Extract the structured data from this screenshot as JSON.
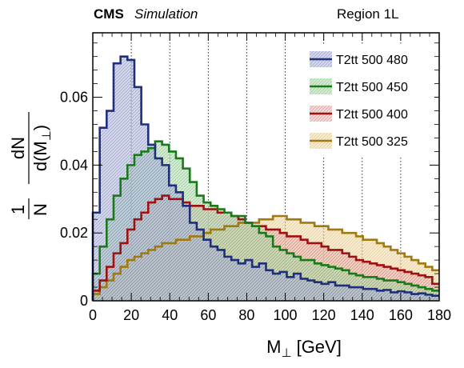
{
  "header": {
    "experiment": "CMS",
    "subtitle": "Simulation",
    "region": "Region 1L"
  },
  "chart_data": {
    "type": "line",
    "xlabel_main": "M",
    "xlabel_sub": "⊥",
    "xlabel_unit": "[GeV]",
    "ylabel_frac": "1",
    "ylabel_frac_den": "N",
    "ylabel_num": "dN",
    "ylabel_den_pre": "d(",
    "ylabel_den_var": "M",
    "ylabel_den_sub": "⊥",
    "ylabel_den_post": ")",
    "xlim": [
      0,
      180
    ],
    "ylim": [
      0,
      0.079
    ],
    "bin_width": 3.6,
    "x_ticks": [
      0,
      20,
      40,
      60,
      80,
      100,
      120,
      140,
      160,
      180
    ],
    "x_tick_labels": [
      "0",
      "20",
      "40",
      "60",
      "80",
      "100",
      "120",
      "140",
      "160",
      "180"
    ],
    "y_ticks": [
      0,
      0.02,
      0.04,
      0.06
    ],
    "y_tick_labels": [
      "0",
      "0.02",
      "0.04",
      "0.06"
    ],
    "grid": "vertical dashed at x ticks",
    "legend_position": "top-right",
    "series": [
      {
        "name": "T2tt 500 480",
        "color": "#1f2f7a",
        "fill": "#aab3e0",
        "values": [
          0.026,
          0.051,
          0.056,
          0.07,
          0.072,
          0.071,
          0.063,
          0.052,
          0.046,
          0.042,
          0.04,
          0.034,
          0.032,
          0.028,
          0.023,
          0.021,
          0.018,
          0.016,
          0.015,
          0.013,
          0.012,
          0.011,
          0.012,
          0.01,
          0.011,
          0.009,
          0.008,
          0.0085,
          0.007,
          0.008,
          0.0065,
          0.006,
          0.0055,
          0.005,
          0.0055,
          0.0045,
          0.0045,
          0.004,
          0.004,
          0.0035,
          0.0035,
          0.003,
          0.0032,
          0.0025,
          0.0028,
          0.0025,
          0.002,
          0.0022,
          0.0018,
          0.0015
        ]
      },
      {
        "name": "T2tt 500 450",
        "color": "#1a7a1a",
        "fill": "#a8dca8",
        "values": [
          0.008,
          0.016,
          0.024,
          0.031,
          0.036,
          0.04,
          0.043,
          0.044,
          0.045,
          0.047,
          0.046,
          0.044,
          0.042,
          0.039,
          0.035,
          0.031,
          0.029,
          0.028,
          0.027,
          0.026,
          0.025,
          0.025,
          0.023,
          0.022,
          0.02,
          0.019,
          0.016,
          0.015,
          0.014,
          0.013,
          0.012,
          0.012,
          0.011,
          0.0105,
          0.01,
          0.0095,
          0.009,
          0.008,
          0.0075,
          0.007,
          0.007,
          0.0065,
          0.006,
          0.006,
          0.0055,
          0.005,
          0.0045,
          0.004,
          0.0035,
          0.003
        ]
      },
      {
        "name": "T2tt 500 400",
        "color": "#a01010",
        "fill": "#f0b4b4",
        "values": [
          0.003,
          0.006,
          0.01,
          0.014,
          0.017,
          0.021,
          0.024,
          0.026,
          0.029,
          0.03,
          0.031,
          0.03,
          0.03,
          0.029,
          0.028,
          0.028,
          0.027,
          0.027,
          0.026,
          0.026,
          0.025,
          0.024,
          0.023,
          0.022,
          0.022,
          0.021,
          0.021,
          0.02,
          0.019,
          0.019,
          0.018,
          0.017,
          0.017,
          0.016,
          0.015,
          0.015,
          0.014,
          0.013,
          0.012,
          0.0115,
          0.011,
          0.0105,
          0.01,
          0.0095,
          0.009,
          0.0085,
          0.008,
          0.0075,
          0.007,
          0.005
        ]
      },
      {
        "name": "T2tt 500 325",
        "color": "#a07a10",
        "fill": "#f5dca0",
        "values": [
          0.002,
          0.004,
          0.006,
          0.008,
          0.01,
          0.012,
          0.013,
          0.014,
          0.015,
          0.016,
          0.017,
          0.017,
          0.018,
          0.018,
          0.019,
          0.019,
          0.02,
          0.021,
          0.021,
          0.022,
          0.022,
          0.023,
          0.023,
          0.023,
          0.024,
          0.024,
          0.025,
          0.025,
          0.024,
          0.024,
          0.023,
          0.023,
          0.022,
          0.022,
          0.021,
          0.021,
          0.02,
          0.02,
          0.019,
          0.018,
          0.018,
          0.017,
          0.016,
          0.015,
          0.014,
          0.013,
          0.012,
          0.011,
          0.01,
          0.009
        ]
      }
    ]
  }
}
